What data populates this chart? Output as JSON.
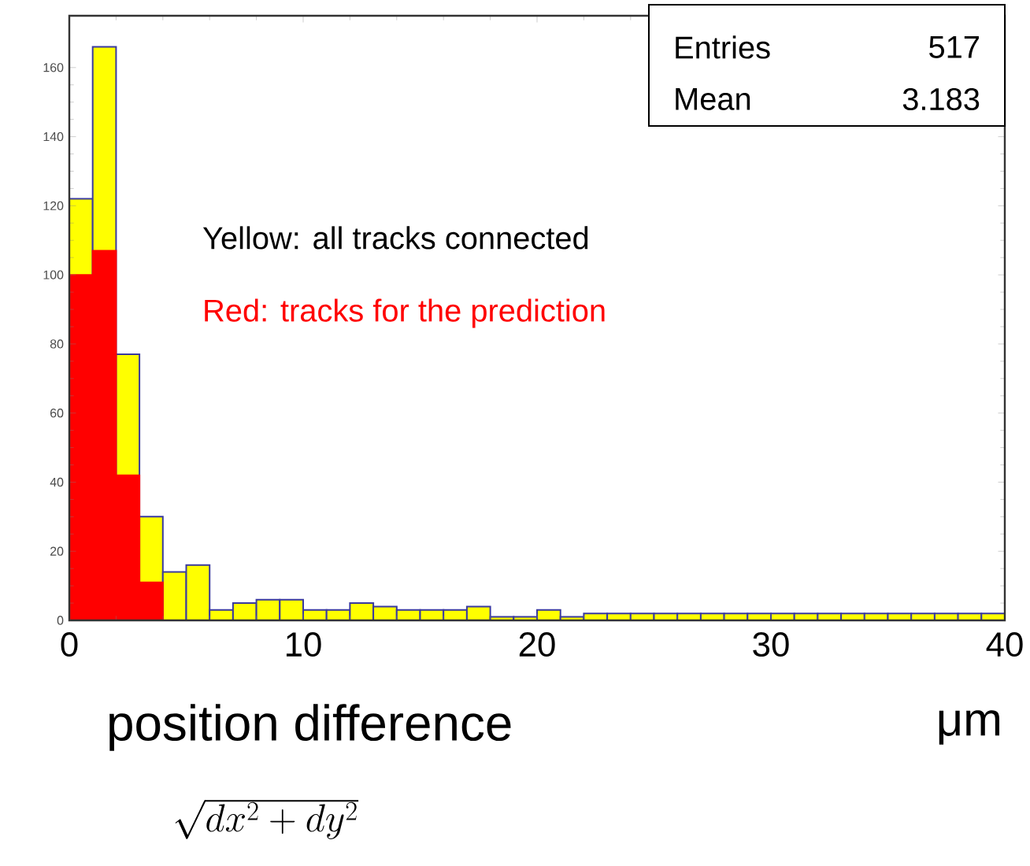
{
  "chart_data": {
    "type": "histogram",
    "xlabel": "position difference",
    "bins": [
      0,
      1,
      2,
      3,
      4,
      5,
      6,
      7,
      8,
      9,
      10,
      11,
      12,
      13,
      14,
      15,
      16,
      17,
      18,
      19,
      20,
      21,
      22,
      23,
      24,
      25,
      26,
      27,
      28,
      29,
      30,
      31,
      32,
      33,
      34,
      35,
      36,
      37,
      38,
      39,
      40
    ],
    "series": [
      {
        "color": "#ffff00",
        "values": [
          122,
          166,
          77,
          30,
          14,
          16,
          3,
          5,
          6,
          6,
          3,
          3,
          5,
          4,
          3,
          3,
          3,
          4,
          1,
          1,
          3,
          1,
          2,
          2,
          2,
          2,
          2,
          2,
          2,
          2,
          2,
          2,
          2,
          2,
          2,
          2,
          2,
          2,
          2,
          2
        ]
      },
      {
        "color": "#ff0000",
        "values": [
          100,
          107,
          42,
          11,
          0,
          0,
          0,
          0,
          0,
          0,
          0,
          0,
          0,
          0,
          0,
          0,
          0,
          0,
          0,
          0,
          0,
          0,
          0,
          0,
          0,
          0,
          0,
          0,
          0,
          0,
          0,
          0,
          0,
          0,
          0,
          0,
          0,
          0,
          0,
          0
        ]
      }
    ],
    "xlim": [
      0,
      40
    ],
    "ylim": [
      0,
      175
    ],
    "xticks": [
      0,
      10,
      20,
      30,
      40
    ],
    "yticks": [
      0,
      20,
      40,
      60,
      80,
      100,
      120,
      140,
      160
    ],
    "annotations": [
      "Yellow: all tracks connected",
      "Red: tracks for the prediction",
      "Entries",
      "517",
      "Mean",
      "3.183",
      "\\sqrt{dx^2 + dy^2}",
      "μm"
    ]
  }
}
